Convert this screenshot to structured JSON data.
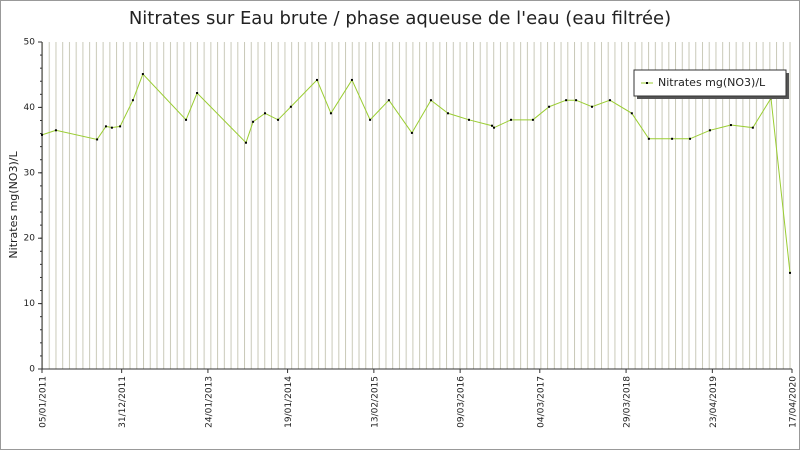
{
  "chart_data": {
    "type": "line",
    "title": "Nitrates sur Eau brute / phase aqueuse de l'eau (eau filtrée)",
    "y_label": "Nitrates mg(NO3)/L",
    "x": [
      "2011-01-05",
      "2011-03-09",
      "2011-09-11",
      "2011-10-21",
      "2011-11-17",
      "2011-12-24",
      "2012-02-20",
      "2012-04-05",
      "2012-10-17",
      "2012-12-06",
      "2013-07-15",
      "2013-08-16",
      "2013-10-09",
      "2013-12-07",
      "2014-02-03",
      "2014-06-01",
      "2014-08-03",
      "2014-11-06",
      "2015-01-27",
      "2015-04-22",
      "2015-08-04",
      "2015-10-29",
      "2016-01-14",
      "2016-04-18",
      "2016-07-31",
      "2016-08-09",
      "2016-10-25",
      "2017-02-01",
      "2017-04-15",
      "2017-07-01",
      "2017-08-15",
      "2017-10-26",
      "2018-01-15",
      "2018-04-24",
      "2018-07-10",
      "2018-10-23",
      "2019-01-12",
      "2019-04-12",
      "2019-07-16",
      "2019-10-23",
      "2020-01-13",
      "2020-04-08"
    ],
    "series": [
      {
        "name": "Nitrates mg(NO3)/L",
        "color": "#9acd32",
        "values": [
          35.8,
          36.5,
          35.1,
          37.1,
          36.9,
          37.1,
          41.1,
          45.1,
          38.1,
          42.2,
          34.6,
          37.8,
          39.1,
          38.1,
          40.1,
          44.2,
          39.1,
          44.2,
          38.1,
          41.1,
          36.1,
          41.1,
          39.1,
          38.1,
          37.2,
          36.9,
          38.1,
          38.1,
          40.1,
          41.1,
          41.1,
          40.1,
          41.1,
          39.1,
          35.2,
          35.2,
          35.2,
          36.5,
          37.3,
          36.9,
          41.4,
          14.7
        ]
      }
    ],
    "xlim": [
      "2011-01-05",
      "2020-04-17"
    ],
    "xticks": [
      {
        "value": "2011-01-05",
        "label": "05/01/2011"
      },
      {
        "value": "2011-12-31",
        "label": "31/12/2011"
      },
      {
        "value": "2013-01-24",
        "label": "24/01/2013"
      },
      {
        "value": "2014-01-19",
        "label": "19/01/2014"
      },
      {
        "value": "2015-02-13",
        "label": "13/02/2015"
      },
      {
        "value": "2016-03-09",
        "label": "09/03/2016"
      },
      {
        "value": "2017-03-04",
        "label": "04/03/2017"
      },
      {
        "value": "2018-03-29",
        "label": "29/03/2018"
      },
      {
        "value": "2019-04-23",
        "label": "23/04/2019"
      },
      {
        "value": "2020-04-17",
        "label": "17/04/2020"
      }
    ],
    "ylim": [
      0,
      50
    ],
    "yticks": [
      0,
      10,
      20,
      30,
      40,
      50
    ],
    "legend": "top-right",
    "grid": true
  }
}
